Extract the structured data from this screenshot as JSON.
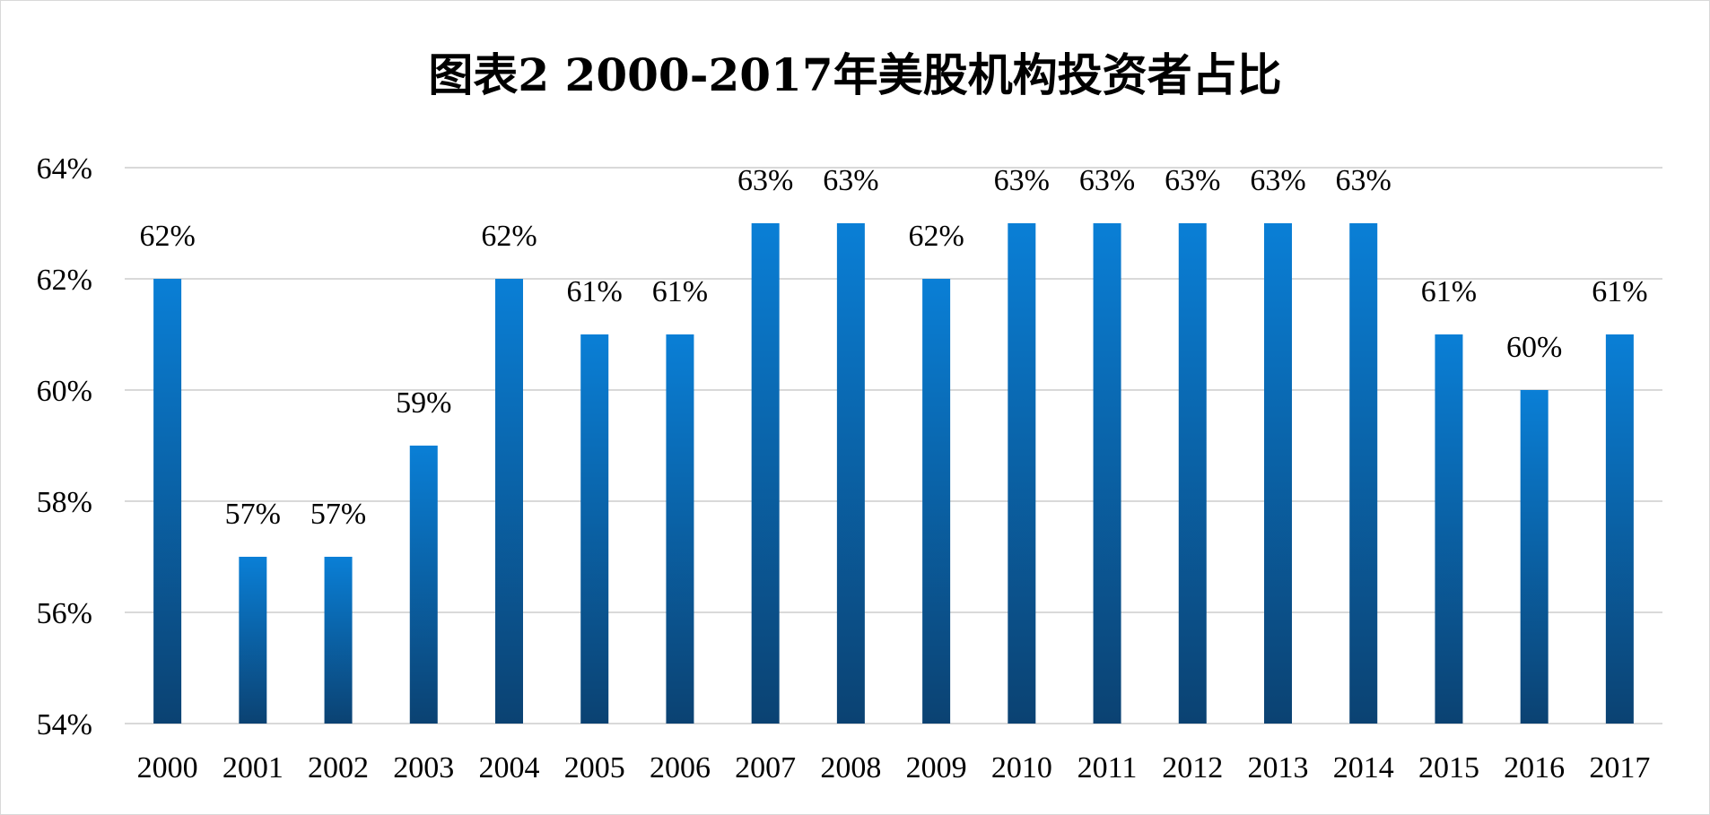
{
  "chart_data": {
    "type": "bar",
    "title": "图表2 2000-2017年美股机构投资者占比",
    "xlabel": "",
    "ylabel": "",
    "categories": [
      "2000",
      "2001",
      "2002",
      "2003",
      "2004",
      "2005",
      "2006",
      "2007",
      "2008",
      "2009",
      "2010",
      "2011",
      "2012",
      "2013",
      "2014",
      "2015",
      "2016",
      "2017"
    ],
    "values": [
      62,
      57,
      57,
      59,
      62,
      61,
      61,
      63,
      63,
      62,
      63,
      63,
      63,
      63,
      63,
      61,
      60,
      61
    ],
    "data_labels": [
      "62%",
      "57%",
      "57%",
      "59%",
      "62%",
      "61%",
      "61%",
      "63%",
      "63%",
      "62%",
      "63%",
      "63%",
      "63%",
      "63%",
      "63%",
      "61%",
      "60%",
      "61%"
    ],
    "ylim": [
      54,
      64
    ],
    "yticks": [
      54,
      56,
      58,
      60,
      62,
      64
    ],
    "ytick_labels": [
      "54%",
      "56%",
      "58%",
      "60%",
      "62%",
      "64%"
    ],
    "grid": true,
    "legend": "none",
    "colors": {
      "bar_top": "#0A7FD6",
      "bar_bottom": "#0B4272",
      "grid": "#d9d9d9",
      "border": "#d9d9d9"
    }
  }
}
